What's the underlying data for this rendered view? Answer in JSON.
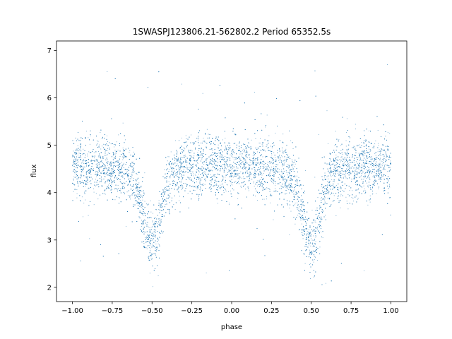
{
  "chart_data": {
    "type": "scatter",
    "title": "1SWASPJ123806.21-562802.2 Period 65352.5s",
    "xlabel": "phase",
    "ylabel": "flux",
    "xlim": [
      -1.1,
      1.1
    ],
    "ylim": [
      1.7,
      7.2
    ],
    "xticks": [
      -1.0,
      -0.75,
      -0.5,
      -0.25,
      0.0,
      0.25,
      0.5,
      0.75,
      1.0
    ],
    "xtick_labels": [
      "−1.00",
      "−0.75",
      "−0.50",
      "−0.25",
      "0.00",
      "0.25",
      "0.50",
      "0.75",
      "1.00"
    ],
    "yticks": [
      2,
      3,
      4,
      5,
      6,
      7
    ],
    "ytick_labels": [
      "2",
      "3",
      "4",
      "5",
      "6",
      "7"
    ],
    "grid": false,
    "point_color": "#1f77b4",
    "series": [
      {
        "baseline_flux": 4.5,
        "primary_minimum": {
          "phase": -0.5,
          "flux": 3.0
        },
        "secondary_minimum": {
          "phase": 0.5,
          "flux": 3.0
        },
        "approx_points": 12000
      }
    ]
  }
}
